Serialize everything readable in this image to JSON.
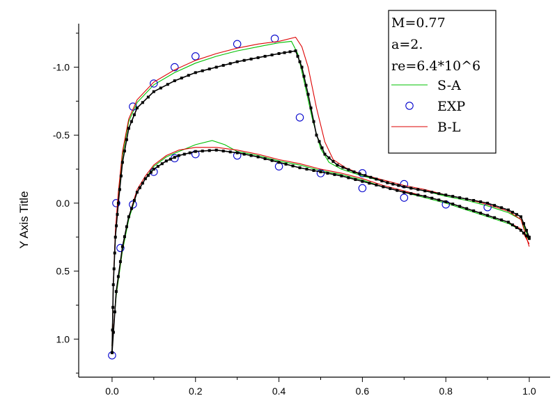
{
  "chart_data": {
    "type": "line",
    "ylabel": "Y Axis Title",
    "xlim": [
      -0.08,
      1.05
    ],
    "ylim": [
      -1.32,
      1.28
    ],
    "y_reversed": true,
    "x_ticks": [
      "0.0",
      "0.2",
      "0.4",
      "0.6",
      "0.8",
      "1.0"
    ],
    "y_ticks": [
      "-1.0",
      "-0.5",
      "0.0",
      "0.5",
      "1.0"
    ],
    "grid": false,
    "legend_position": "top-right",
    "legend_header": [
      "M=0.77",
      "a=2.",
      "re=6.4*10^6"
    ],
    "series": [
      {
        "name": "S-A",
        "color": "#00c000",
        "style": "line",
        "segments": [
          [
            [
              0.0,
              1.05
            ],
            [
              0.003,
              0.6
            ],
            [
              0.008,
              0.22
            ],
            [
              0.015,
              -0.05
            ],
            [
              0.025,
              -0.35
            ],
            [
              0.04,
              -0.6
            ],
            [
              0.06,
              -0.74
            ],
            [
              0.1,
              -0.87
            ],
            [
              0.15,
              -0.96
            ],
            [
              0.2,
              -1.03
            ],
            [
              0.25,
              -1.08
            ],
            [
              0.3,
              -1.12
            ],
            [
              0.35,
              -1.15
            ],
            [
              0.4,
              -1.18
            ],
            [
              0.43,
              -1.19
            ],
            [
              0.445,
              -1.1
            ],
            [
              0.46,
              -0.9
            ],
            [
              0.48,
              -0.62
            ],
            [
              0.5,
              -0.4
            ],
            [
              0.52,
              -0.3
            ],
            [
              0.55,
              -0.25
            ],
            [
              0.6,
              -0.2
            ],
            [
              0.65,
              -0.16
            ],
            [
              0.7,
              -0.12
            ],
            [
              0.75,
              -0.09
            ],
            [
              0.8,
              -0.05
            ],
            [
              0.85,
              -0.02
            ],
            [
              0.9,
              0.02
            ],
            [
              0.95,
              0.07
            ],
            [
              0.98,
              0.12
            ],
            [
              1.0,
              0.27
            ]
          ],
          [
            [
              0.0,
              1.05
            ],
            [
              0.01,
              0.68
            ],
            [
              0.025,
              0.35
            ],
            [
              0.04,
              0.12
            ],
            [
              0.06,
              -0.08
            ],
            [
              0.08,
              -0.18
            ],
            [
              0.1,
              -0.27
            ],
            [
              0.13,
              -0.34
            ],
            [
              0.16,
              -0.38
            ],
            [
              0.2,
              -0.43
            ],
            [
              0.24,
              -0.46
            ],
            [
              0.27,
              -0.43
            ],
            [
              0.3,
              -0.38
            ],
            [
              0.35,
              -0.35
            ],
            [
              0.4,
              -0.31
            ],
            [
              0.45,
              -0.28
            ],
            [
              0.5,
              -0.24
            ],
            [
              0.55,
              -0.21
            ],
            [
              0.6,
              -0.17
            ],
            [
              0.65,
              -0.12
            ],
            [
              0.7,
              -0.08
            ],
            [
              0.75,
              -0.04
            ],
            [
              0.8,
              0.0
            ],
            [
              0.85,
              0.05
            ],
            [
              0.9,
              0.1
            ],
            [
              0.95,
              0.15
            ],
            [
              0.98,
              0.2
            ],
            [
              1.0,
              0.27
            ]
          ]
        ]
      },
      {
        "name": "EXP",
        "color": "#0000cc",
        "style": "circle",
        "points": [
          [
            0.0,
            1.12
          ],
          [
            0.01,
            0.0
          ],
          [
            0.02,
            0.33
          ],
          [
            0.05,
            0.01
          ],
          [
            0.05,
            -0.71
          ],
          [
            0.1,
            -0.88
          ],
          [
            0.1,
            -0.23
          ],
          [
            0.15,
            -1.0
          ],
          [
            0.15,
            -0.33
          ],
          [
            0.2,
            -1.08
          ],
          [
            0.2,
            -0.36
          ],
          [
            0.3,
            -1.17
          ],
          [
            0.3,
            -0.35
          ],
          [
            0.39,
            -1.21
          ],
          [
            0.4,
            -0.27
          ],
          [
            0.45,
            -0.63
          ],
          [
            0.5,
            -0.22
          ],
          [
            0.6,
            -0.22
          ],
          [
            0.6,
            -0.11
          ],
          [
            0.7,
            -0.14
          ],
          [
            0.7,
            -0.04
          ],
          [
            0.8,
            0.01
          ],
          [
            0.9,
            0.03
          ]
        ]
      },
      {
        "name": "B-L",
        "color": "#dd0000",
        "style": "line",
        "segments": [
          [
            [
              0.0,
              1.05
            ],
            [
              0.003,
              0.58
            ],
            [
              0.008,
              0.2
            ],
            [
              0.015,
              -0.08
            ],
            [
              0.025,
              -0.38
            ],
            [
              0.04,
              -0.62
            ],
            [
              0.06,
              -0.76
            ],
            [
              0.1,
              -0.89
            ],
            [
              0.15,
              -0.98
            ],
            [
              0.2,
              -1.05
            ],
            [
              0.25,
              -1.1
            ],
            [
              0.3,
              -1.14
            ],
            [
              0.35,
              -1.17
            ],
            [
              0.4,
              -1.19
            ],
            [
              0.44,
              -1.22
            ],
            [
              0.455,
              -1.15
            ],
            [
              0.47,
              -1.0
            ],
            [
              0.49,
              -0.7
            ],
            [
              0.51,
              -0.45
            ],
            [
              0.53,
              -0.32
            ],
            [
              0.56,
              -0.26
            ],
            [
              0.6,
              -0.21
            ],
            [
              0.65,
              -0.17
            ],
            [
              0.7,
              -0.13
            ],
            [
              0.75,
              -0.1
            ],
            [
              0.8,
              -0.06
            ],
            [
              0.85,
              -0.03
            ],
            [
              0.9,
              0.01
            ],
            [
              0.95,
              0.06
            ],
            [
              0.98,
              0.12
            ],
            [
              1.0,
              0.32
            ]
          ],
          [
            [
              0.0,
              1.05
            ],
            [
              0.01,
              0.66
            ],
            [
              0.025,
              0.33
            ],
            [
              0.04,
              0.1
            ],
            [
              0.06,
              -0.1
            ],
            [
              0.08,
              -0.2
            ],
            [
              0.1,
              -0.28
            ],
            [
              0.13,
              -0.35
            ],
            [
              0.16,
              -0.39
            ],
            [
              0.2,
              -0.41
            ],
            [
              0.25,
              -0.41
            ],
            [
              0.3,
              -0.39
            ],
            [
              0.35,
              -0.36
            ],
            [
              0.4,
              -0.32
            ],
            [
              0.45,
              -0.29
            ],
            [
              0.5,
              -0.25
            ],
            [
              0.55,
              -0.22
            ],
            [
              0.6,
              -0.18
            ],
            [
              0.65,
              -0.13
            ],
            [
              0.7,
              -0.09
            ],
            [
              0.75,
              -0.05
            ],
            [
              0.8,
              -0.01
            ],
            [
              0.85,
              0.04
            ],
            [
              0.9,
              0.09
            ],
            [
              0.95,
              0.14
            ],
            [
              0.98,
              0.19
            ],
            [
              1.0,
              0.3
            ]
          ]
        ]
      },
      {
        "name": "",
        "color": "#000000",
        "style": "line-square",
        "segments": [
          [
            [
              0.0,
              1.1
            ],
            [
              0.003,
              0.6
            ],
            [
              0.008,
              0.25
            ],
            [
              0.015,
              0.0
            ],
            [
              0.025,
              -0.3
            ],
            [
              0.04,
              -0.55
            ],
            [
              0.06,
              -0.7
            ],
            [
              0.1,
              -0.82
            ],
            [
              0.15,
              -0.9
            ],
            [
              0.2,
              -0.96
            ],
            [
              0.25,
              -1.0
            ],
            [
              0.3,
              -1.04
            ],
            [
              0.35,
              -1.07
            ],
            [
              0.4,
              -1.1
            ],
            [
              0.44,
              -1.12
            ],
            [
              0.455,
              -1.0
            ],
            [
              0.47,
              -0.8
            ],
            [
              0.49,
              -0.5
            ],
            [
              0.51,
              -0.36
            ],
            [
              0.54,
              -0.28
            ],
            [
              0.58,
              -0.23
            ],
            [
              0.62,
              -0.19
            ],
            [
              0.66,
              -0.15
            ],
            [
              0.7,
              -0.12
            ],
            [
              0.75,
              -0.09
            ],
            [
              0.8,
              -0.06
            ],
            [
              0.85,
              -0.03
            ],
            [
              0.9,
              0.0
            ],
            [
              0.95,
              0.05
            ],
            [
              0.98,
              0.1
            ],
            [
              1.0,
              0.25
            ]
          ],
          [
            [
              0.0,
              1.1
            ],
            [
              0.01,
              0.65
            ],
            [
              0.025,
              0.32
            ],
            [
              0.04,
              0.1
            ],
            [
              0.06,
              -0.08
            ],
            [
              0.08,
              -0.18
            ],
            [
              0.1,
              -0.25
            ],
            [
              0.13,
              -0.31
            ],
            [
              0.16,
              -0.35
            ],
            [
              0.2,
              -0.38
            ],
            [
              0.25,
              -0.39
            ],
            [
              0.3,
              -0.37
            ],
            [
              0.35,
              -0.34
            ],
            [
              0.4,
              -0.3
            ],
            [
              0.45,
              -0.26
            ],
            [
              0.5,
              -0.23
            ],
            [
              0.55,
              -0.2
            ],
            [
              0.6,
              -0.16
            ],
            [
              0.65,
              -0.12
            ],
            [
              0.7,
              -0.08
            ],
            [
              0.75,
              -0.05
            ],
            [
              0.8,
              -0.01
            ],
            [
              0.85,
              0.04
            ],
            [
              0.9,
              0.09
            ],
            [
              0.95,
              0.14
            ],
            [
              0.98,
              0.2
            ],
            [
              1.0,
              0.26
            ]
          ]
        ]
      }
    ]
  }
}
